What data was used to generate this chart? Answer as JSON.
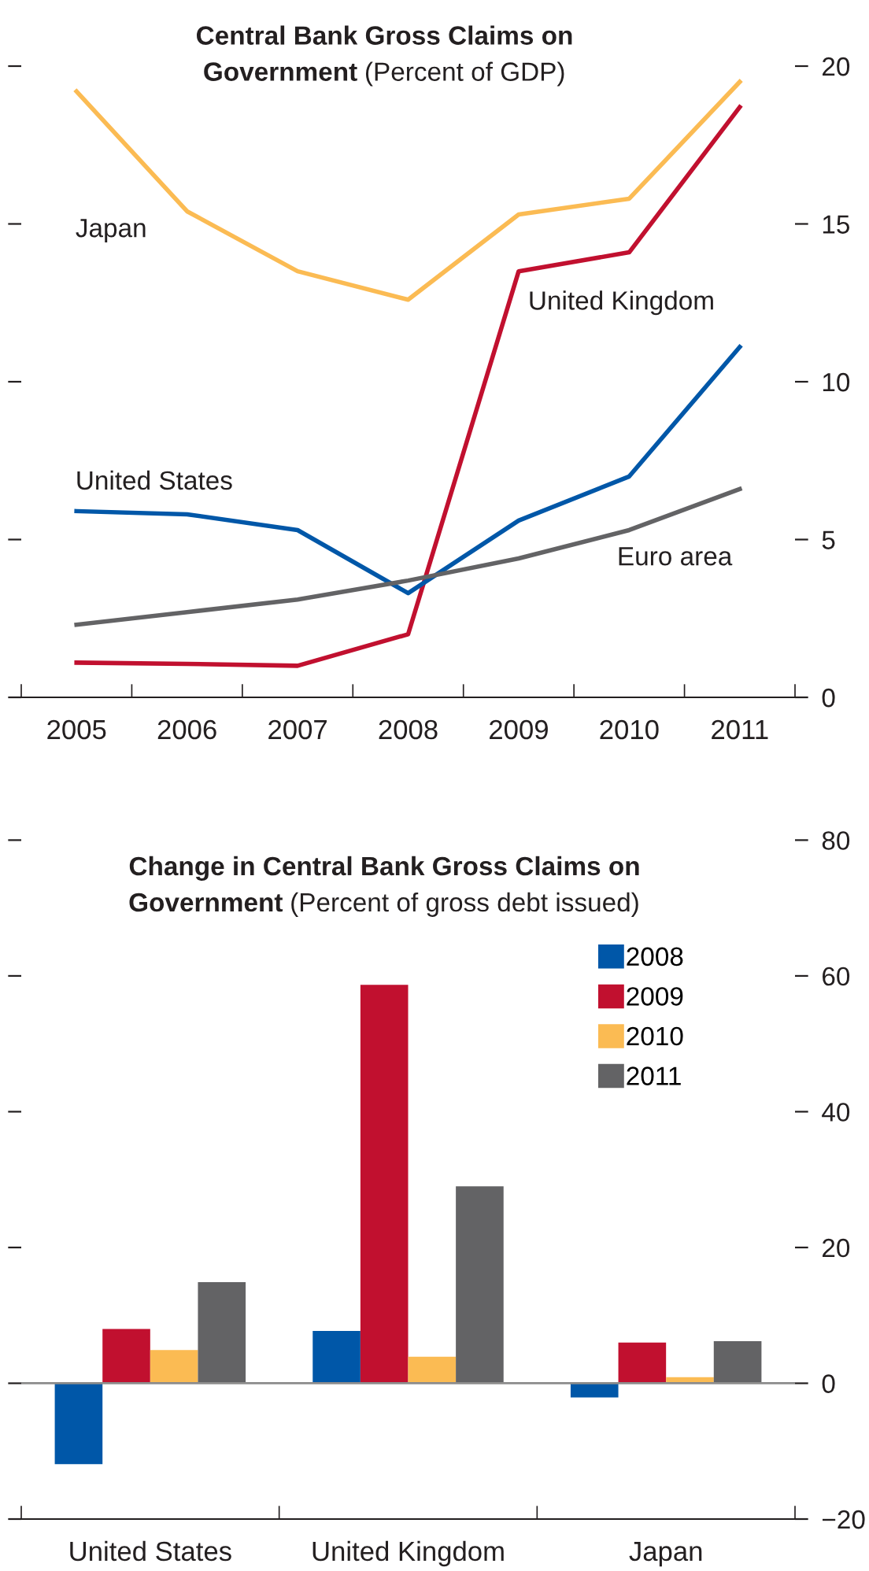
{
  "chart_data": [
    {
      "type": "line",
      "title": "Central Bank Gross Claims on Government",
      "subtitle": "(Percent of GDP)",
      "categories": [
        "2005",
        "2006",
        "2007",
        "2008",
        "2009",
        "2010",
        "2011"
      ],
      "series": [
        {
          "name": "Japan",
          "color": "#fbbb53",
          "values": [
            19.2,
            15.4,
            13.5,
            12.6,
            15.3,
            15.8,
            19.5
          ]
        },
        {
          "name": "United Kingdom",
          "color": "#c1102f",
          "values": [
            1.1,
            1.06,
            1.0,
            2.0,
            13.5,
            14.1,
            18.7
          ]
        },
        {
          "name": "United States",
          "color": "#0057a8",
          "values": [
            5.9,
            5.8,
            5.3,
            3.3,
            5.6,
            7.0,
            11.1
          ]
        },
        {
          "name": "Euro area",
          "color": "#636365",
          "values": [
            2.3,
            2.7,
            3.1,
            3.7,
            4.4,
            5.3,
            6.6
          ]
        }
      ],
      "ylim": [
        0,
        20
      ],
      "yticks": [
        0,
        5,
        10,
        15,
        20
      ],
      "grid": false,
      "legend": false,
      "line_style": "solid",
      "marker": "none"
    },
    {
      "type": "bar",
      "title": "Change in Central Bank Gross Claims on Government",
      "subtitle": "(Percent of gross debt issued)",
      "categories": [
        "United States",
        "United Kingdom",
        "Japan"
      ],
      "series": [
        {
          "name": "2008",
          "color": "#0057a8",
          "values": [
            -11.9,
            7.7,
            -2.1
          ]
        },
        {
          "name": "2009",
          "color": "#c1102f",
          "values": [
            8.0,
            58.7,
            6.0
          ]
        },
        {
          "name": "2010",
          "color": "#fbbb53",
          "values": [
            4.9,
            3.9,
            0.9
          ]
        },
        {
          "name": "2011",
          "color": "#636365",
          "values": [
            14.9,
            29.0,
            6.2
          ]
        }
      ],
      "ylim": [
        -20,
        80
      ],
      "yticks": [
        {
          "value": -20,
          "label": "−20"
        },
        0,
        20,
        40,
        60,
        80
      ],
      "grid": false,
      "legend": "top right",
      "ref_lines": [
        {
          "axis": "y",
          "value": 0,
          "color": "#8c8c8c"
        }
      ]
    }
  ]
}
